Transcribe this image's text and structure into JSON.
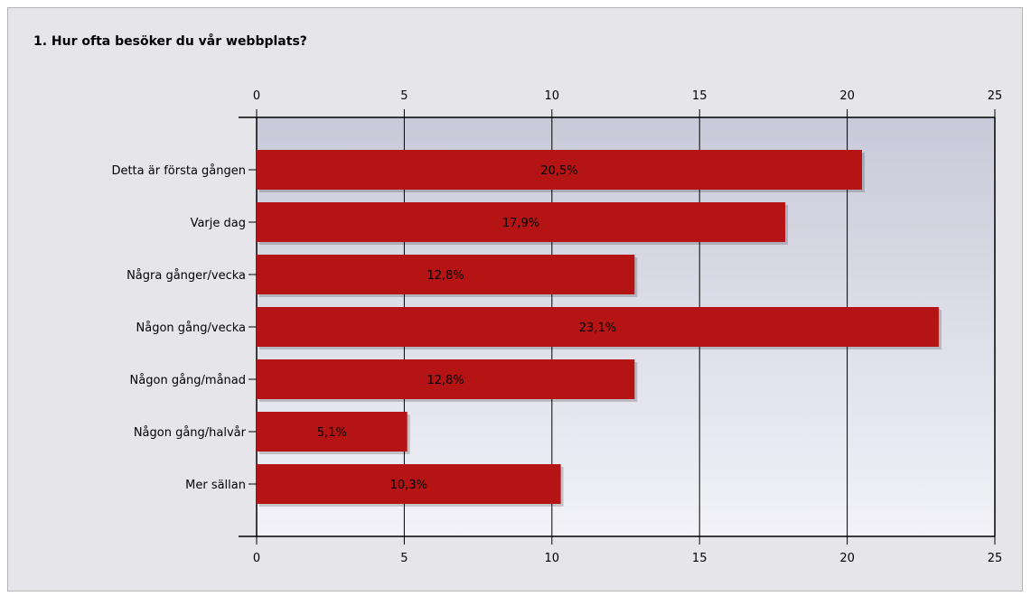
{
  "question": {
    "title": "1. Hur ofta besöker du vår webbplats?"
  },
  "colors": {
    "bar": "#b41414",
    "plot_top": "#c9cad9",
    "plot_bottom": "#f2f2f8",
    "panel": "#e6e6ea"
  },
  "chart_data": {
    "type": "bar",
    "orientation": "horizontal",
    "title": "1. Hur ofta besöker du vår webbplats?",
    "categories": [
      "Detta är första gången",
      "Varje dag",
      "Några gånger/vecka",
      "Någon gång/vecka",
      "Någon gång/månad",
      "Någon gång/halvår",
      "Mer sällan"
    ],
    "values": [
      20.5,
      17.9,
      12.8,
      23.1,
      12.8,
      5.1,
      10.3
    ],
    "data_labels": [
      "20,5%",
      "17,9%",
      "12,8%",
      "23,1%",
      "12,8%",
      "5,1%",
      "10,3%"
    ],
    "xlim": [
      0,
      25
    ],
    "x_ticks": [
      0,
      5,
      10,
      15,
      20,
      25
    ],
    "x_tick_labels": [
      "0",
      "5",
      "10",
      "15",
      "20",
      "25"
    ],
    "axis_position": "top and bottom",
    "grid": true,
    "legend": false
  }
}
